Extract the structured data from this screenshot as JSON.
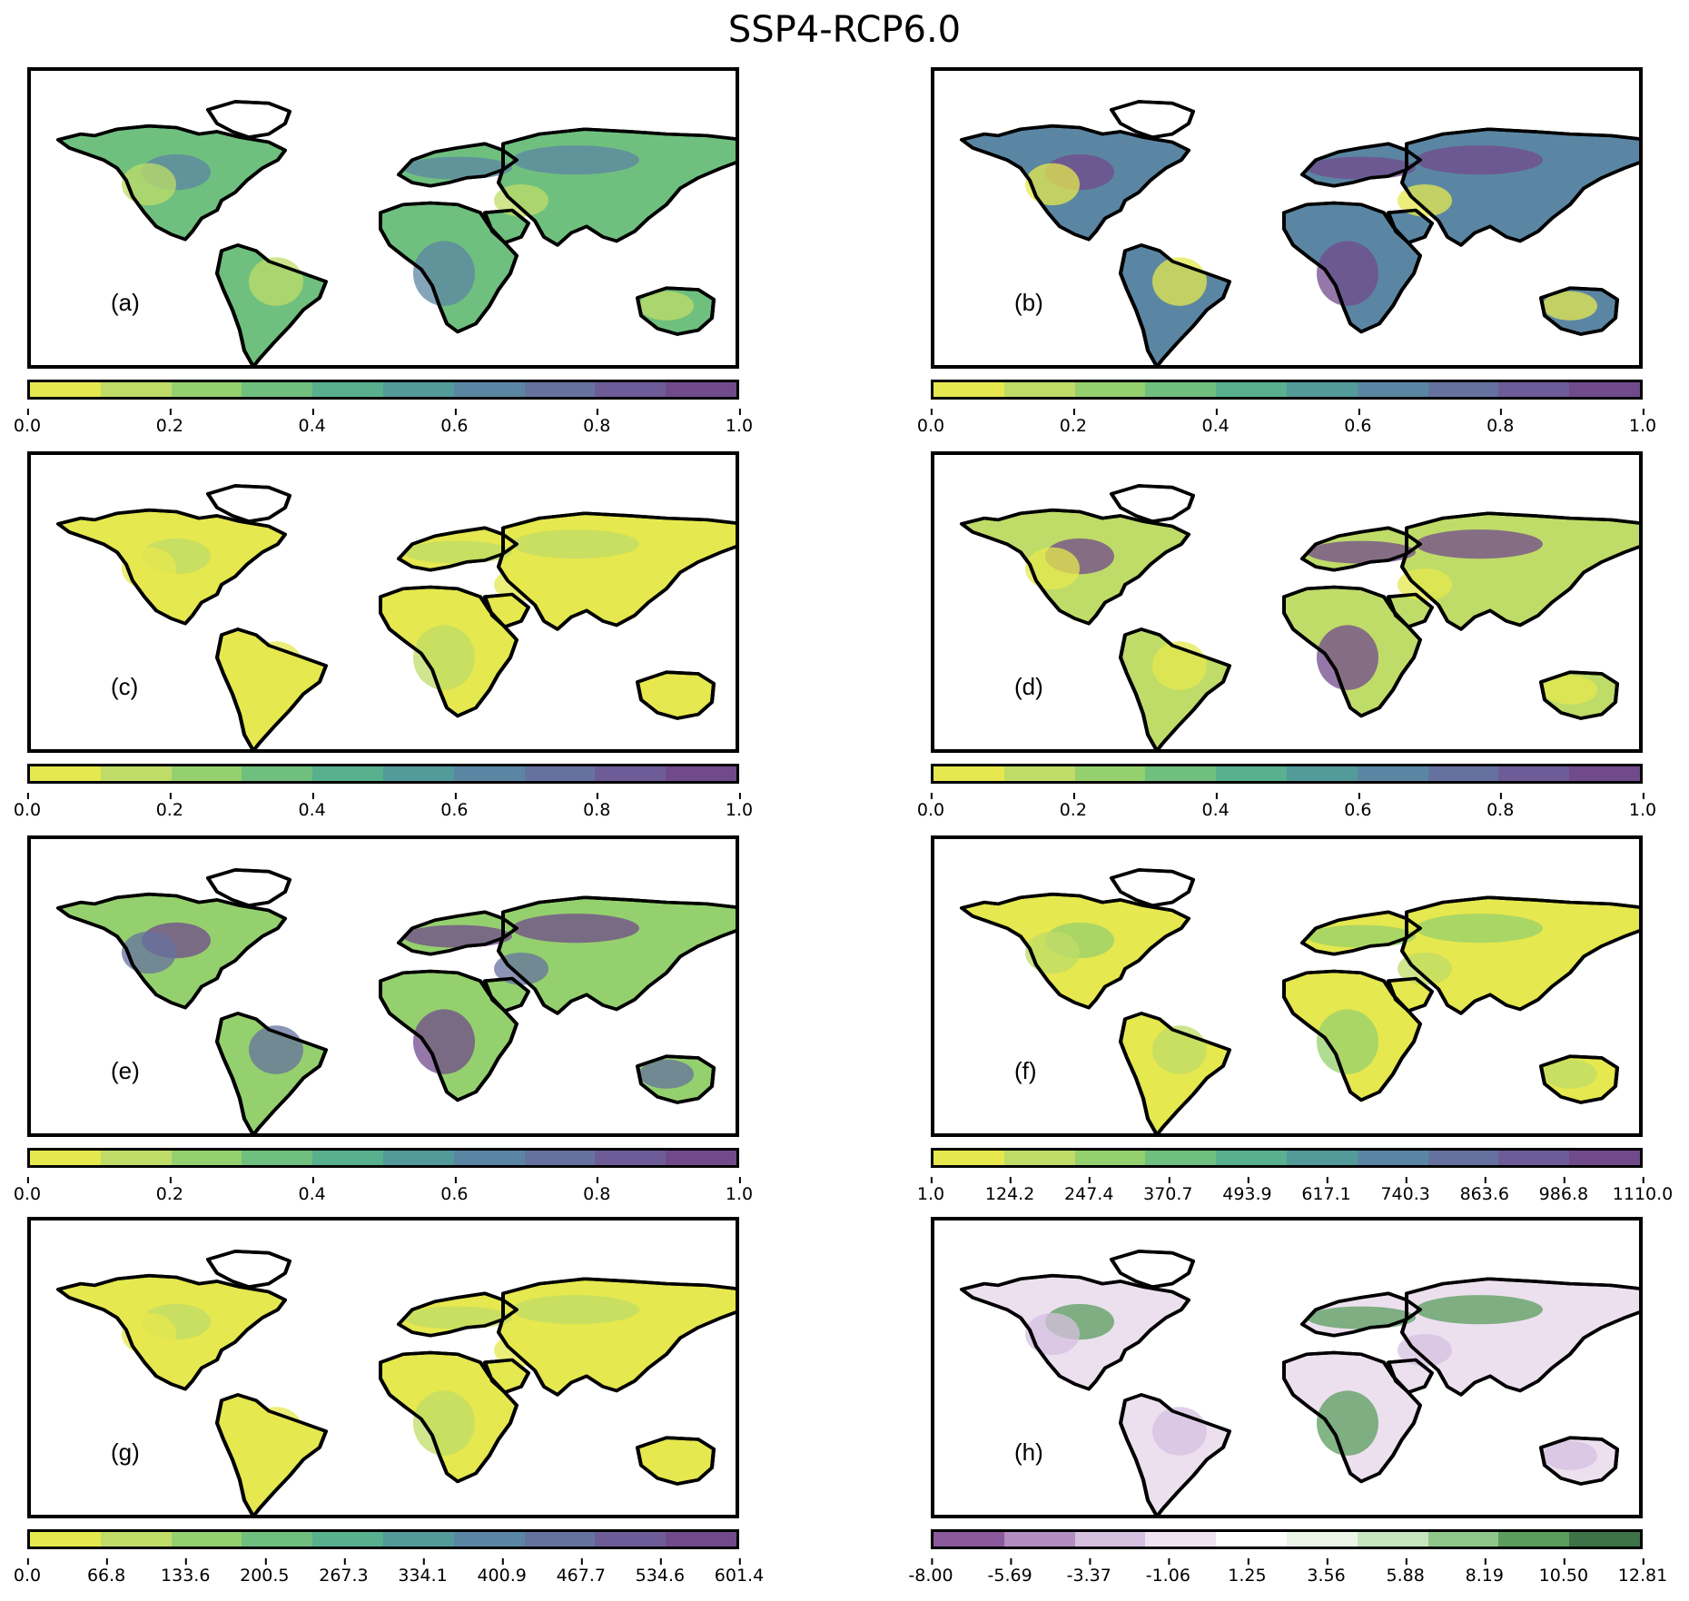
{
  "title": "SSP4-RCP6.0",
  "panels": [
    {
      "id": "a",
      "label": "(a)",
      "ticks": [
        "0.0",
        "0.2",
        "0.4",
        "0.6",
        "0.8",
        "1.0"
      ],
      "palette": "viridis",
      "fill": "viridis-mid"
    },
    {
      "id": "b",
      "label": "(b)",
      "ticks": [
        "0.0",
        "0.2",
        "0.4",
        "0.6",
        "0.8",
        "1.0"
      ],
      "palette": "viridis",
      "fill": "viridis-high"
    },
    {
      "id": "c",
      "label": "(c)",
      "ticks": [
        "0.0",
        "0.2",
        "0.4",
        "0.6",
        "0.8",
        "1.0"
      ],
      "palette": "viridis",
      "fill": "viridis-low"
    },
    {
      "id": "d",
      "label": "(d)",
      "ticks": [
        "0.0",
        "0.2",
        "0.4",
        "0.6",
        "0.8",
        "1.0"
      ],
      "palette": "viridis",
      "fill": "viridis-mixed"
    },
    {
      "id": "e",
      "label": "(e)",
      "ticks": [
        "0.0",
        "0.2",
        "0.4",
        "0.6",
        "0.8",
        "1.0"
      ],
      "palette": "viridis",
      "fill": "viridis-mixed2"
    },
    {
      "id": "f",
      "label": "(f)",
      "ticks": [
        "1.0",
        "124.2",
        "247.4",
        "370.7",
        "493.9",
        "617.1",
        "740.3",
        "863.6",
        "986.8",
        "1110.0"
      ],
      "palette": "viridis",
      "fill": "viridis-low2"
    },
    {
      "id": "g",
      "label": "(g)",
      "ticks": [
        "0.0",
        "66.8",
        "133.6",
        "200.5",
        "267.3",
        "334.1",
        "400.9",
        "467.7",
        "534.6",
        "601.4"
      ],
      "palette": "viridis",
      "fill": "viridis-low"
    },
    {
      "id": "h",
      "label": "(h)",
      "ticks": [
        "-8.00",
        "-5.69",
        "-3.37",
        "-1.06",
        "1.25",
        "3.56",
        "5.88",
        "8.19",
        "10.50",
        "12.81"
      ],
      "palette": "prgn",
      "fill": "prgn"
    }
  ],
  "colors": {
    "viridis": [
      "#e5e84e",
      "#bfdc68",
      "#95d06e",
      "#6fc07f",
      "#58b08e",
      "#539a9a",
      "#5b86a3",
      "#65729f",
      "#6e5c98",
      "#714a8c"
    ],
    "prgn": [
      "#8a5a9d",
      "#b28dbf",
      "#d5c0e0",
      "#efe3f2",
      "#ffffff",
      "#eaf5e8",
      "#c6e6bf",
      "#8fc78a",
      "#5a9d5c",
      "#3d7346"
    ]
  }
}
